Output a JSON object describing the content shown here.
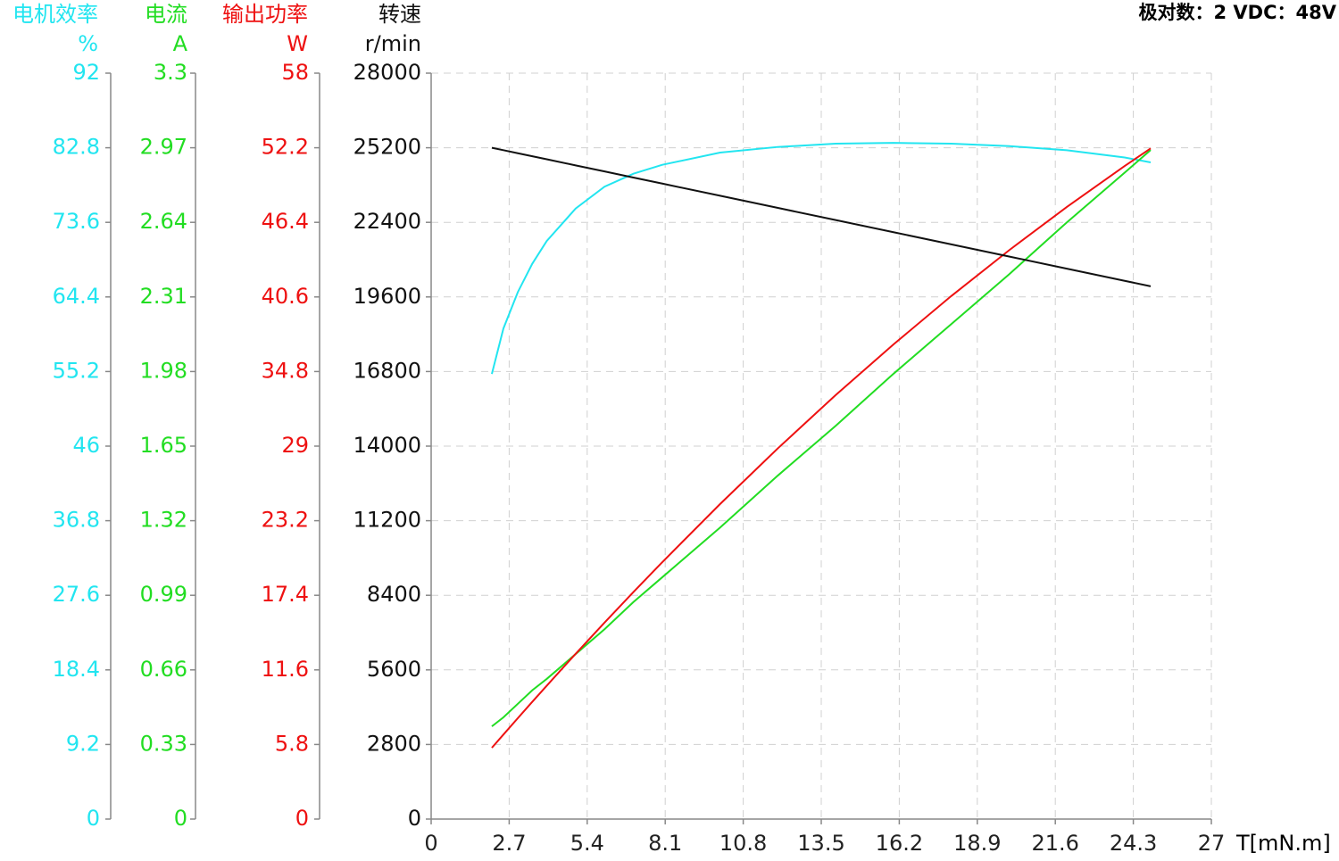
{
  "chart_data": {
    "type": "line",
    "annotation": "极对数：2   VDC：48V",
    "xlabel": "T[mN.m]",
    "x": [
      2.1,
      2.5,
      3,
      3.5,
      4,
      5,
      6,
      7,
      8,
      10,
      12,
      14,
      16,
      18,
      20,
      22,
      24,
      24.9
    ],
    "xlim": [
      0,
      27
    ],
    "xticks": [
      0,
      2.7,
      5.4,
      8.1,
      10.8,
      13.5,
      16.2,
      18.9,
      21.6,
      24.3,
      27
    ],
    "grid": true,
    "series": [
      {
        "name": "电机效率",
        "unit": "%",
        "color": "#22e5f0",
        "ylim": [
          0,
          92
        ],
        "yticks": [
          0,
          9.2,
          18.4,
          27.6,
          36.8,
          46,
          55.2,
          64.4,
          73.6,
          82.8,
          92
        ],
        "values": [
          54.9,
          60.5,
          65.0,
          68.5,
          71.3,
          75.3,
          78.0,
          79.6,
          80.7,
          82.2,
          82.9,
          83.3,
          83.4,
          83.3,
          83.0,
          82.5,
          81.6,
          81.0
        ]
      },
      {
        "name": "电流",
        "unit": "A",
        "color": "#22dd22",
        "ylim": [
          0,
          3.3
        ],
        "yticks": [
          0,
          0.33,
          0.66,
          0.99,
          1.32,
          1.65,
          1.98,
          2.31,
          2.64,
          2.97,
          3.3
        ],
        "values": [
          0.41,
          0.45,
          0.51,
          0.57,
          0.62,
          0.73,
          0.84,
          0.96,
          1.07,
          1.29,
          1.52,
          1.74,
          1.97,
          2.19,
          2.41,
          2.64,
          2.86,
          2.96
        ]
      },
      {
        "name": "输出功率",
        "unit": "W",
        "color": "#ee1111",
        "ylim": [
          0,
          58
        ],
        "yticks": [
          0,
          5.8,
          11.6,
          17.4,
          23.2,
          29,
          34.8,
          40.6,
          46.4,
          52.2,
          58
        ],
        "values": [
          5.54,
          6.57,
          7.85,
          9.12,
          10.37,
          12.85,
          15.28,
          17.65,
          19.98,
          24.5,
          28.83,
          32.97,
          36.91,
          40.67,
          44.23,
          47.6,
          50.78,
          52.15
        ]
      },
      {
        "name": "转速",
        "unit": "r/min",
        "color": "#111111",
        "ylim": [
          0,
          28000
        ],
        "yticks": [
          0,
          2800,
          5600,
          8400,
          11200,
          14000,
          16800,
          19600,
          22400,
          25200,
          28000
        ],
        "values": [
          25200,
          25109,
          24995,
          24881,
          24767,
          24539,
          24311,
          24082,
          23854,
          23398,
          22942,
          22486,
          22030,
          21574,
          21117,
          20661,
          20205,
          20000
        ]
      }
    ]
  }
}
